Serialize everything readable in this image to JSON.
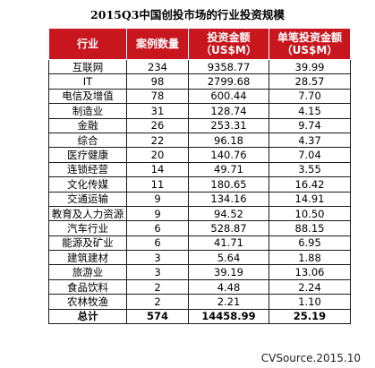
{
  "title": "2015Q3中国创投市场的行业投资规模",
  "headers": {
    "industry": "行业",
    "cases": "案例数量",
    "investment_line1": "投资金额",
    "investment_line2": "（US$M）",
    "avg_line1": "单笔投资金额",
    "avg_line2": "（US$M）"
  },
  "rows": [
    {
      "industry": "互联网",
      "cases": "234",
      "amount": "9358.77",
      "avg": "39.99"
    },
    {
      "industry": "IT",
      "cases": "98",
      "amount": "2799.68",
      "avg": "28.57"
    },
    {
      "industry": "电信及增值",
      "cases": "78",
      "amount": "600.44",
      "avg": "7.70"
    },
    {
      "industry": "制造业",
      "cases": "31",
      "amount": "128.74",
      "avg": "4.15"
    },
    {
      "industry": "金融",
      "cases": "26",
      "amount": "253.31",
      "avg": "9.74"
    },
    {
      "industry": "综合",
      "cases": "22",
      "amount": "96.18",
      "avg": "4.37"
    },
    {
      "industry": "医疗健康",
      "cases": "20",
      "amount": "140.76",
      "avg": "7.04"
    },
    {
      "industry": "连锁经营",
      "cases": "14",
      "amount": "49.71",
      "avg": "3.55"
    },
    {
      "industry": "文化传媒",
      "cases": "11",
      "amount": "180.65",
      "avg": "16.42"
    },
    {
      "industry": "交通运输",
      "cases": "9",
      "amount": "134.16",
      "avg": "14.91"
    },
    {
      "industry": "教育及人力资源",
      "cases": "9",
      "amount": "94.52",
      "avg": "10.50"
    },
    {
      "industry": "汽车行业",
      "cases": "6",
      "amount": "528.87",
      "avg": "88.15"
    },
    {
      "industry": "能源及矿业",
      "cases": "6",
      "amount": "41.71",
      "avg": "6.95"
    },
    {
      "industry": "建筑建材",
      "cases": "3",
      "amount": "5.64",
      "avg": "1.88"
    },
    {
      "industry": "旅游业",
      "cases": "3",
      "amount": "39.19",
      "avg": "13.06"
    },
    {
      "industry": "食品饮料",
      "cases": "2",
      "amount": "4.48",
      "avg": "2.24"
    },
    {
      "industry": "农林牧渔",
      "cases": "2",
      "amount": "2.21",
      "avg": "1.10"
    }
  ],
  "total": {
    "industry": "总计",
    "cases": "574",
    "amount": "14458.99",
    "avg": "25.19"
  },
  "footer": "CVSource.2015.10",
  "colors": {
    "header_bg": "#c8161e",
    "header_text": "#ffffff",
    "border": "#1a1a1a"
  }
}
